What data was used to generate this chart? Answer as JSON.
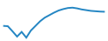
{
  "x": [
    0,
    1,
    2,
    3,
    4,
    5,
    6,
    7,
    8,
    9,
    10,
    11,
    12,
    13,
    14,
    15,
    16,
    17,
    18,
    19,
    20,
    21,
    22
  ],
  "y": [
    3.5,
    3.4,
    2.0,
    0.5,
    1.8,
    0.2,
    2.2,
    3.5,
    4.8,
    5.8,
    6.5,
    7.2,
    7.8,
    8.2,
    8.5,
    8.6,
    8.4,
    8.1,
    7.9,
    7.7,
    7.6,
    7.5,
    7.45
  ],
  "line_color": "#2486c3",
  "line_width": 1.4,
  "background_color": "#ffffff"
}
